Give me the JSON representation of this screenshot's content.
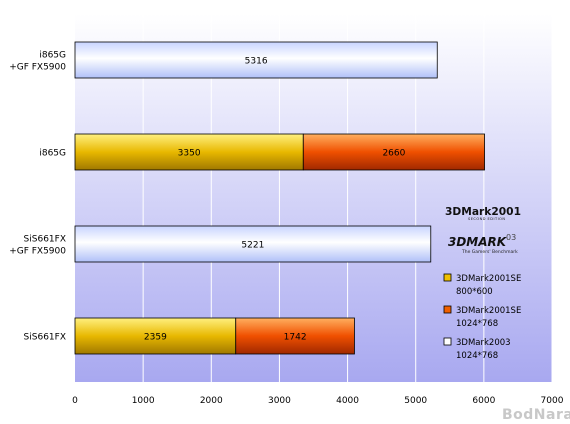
{
  "chart_data": {
    "type": "bar",
    "orientation": "horizontal",
    "stacked": true,
    "categories": [
      [
        "i865G",
        "+GF FX5900"
      ],
      [
        "i865G"
      ],
      [
        "SiS661FX",
        "+GF FX5900"
      ],
      [
        "SiS661FX"
      ]
    ],
    "series": [
      {
        "name": "3DMark2001SE 800*600",
        "name_lines": [
          "3DMark2001SE",
          "800*600"
        ],
        "color": "#f0c000",
        "values": [
          null,
          3350,
          null,
          2359
        ]
      },
      {
        "name": "3DMark2001SE 1024*768",
        "name_lines": [
          "3DMark2001SE",
          "1024*768"
        ],
        "color": "#f06000",
        "values": [
          null,
          2660,
          null,
          1742
        ]
      },
      {
        "name": "3DMark2003 1024*768",
        "name_lines": [
          "3DMark2003",
          "1024*768"
        ],
        "color": "#ffffff",
        "values": [
          5316,
          null,
          5221,
          null
        ]
      }
    ],
    "xlim": [
      0,
      7000
    ],
    "xticks": [
      0,
      1000,
      2000,
      3000,
      4000,
      5000,
      6000,
      7000
    ],
    "grid": true,
    "legend_position": "right",
    "title": "",
    "xlabel": "",
    "ylabel": ""
  },
  "logos": {
    "mark2001": "3DMark2001",
    "mark2001_sub": "SECOND EDITION",
    "mark03": "3DMARK",
    "mark03_suffix": "03",
    "mark03_sub": "The Gamers' Benchmark"
  },
  "watermark": "BodNara",
  "colors": {
    "plot_bg_top": "#ffffff",
    "plot_bg_bottom": "#aaaaf0",
    "grid": "#ffffff"
  }
}
